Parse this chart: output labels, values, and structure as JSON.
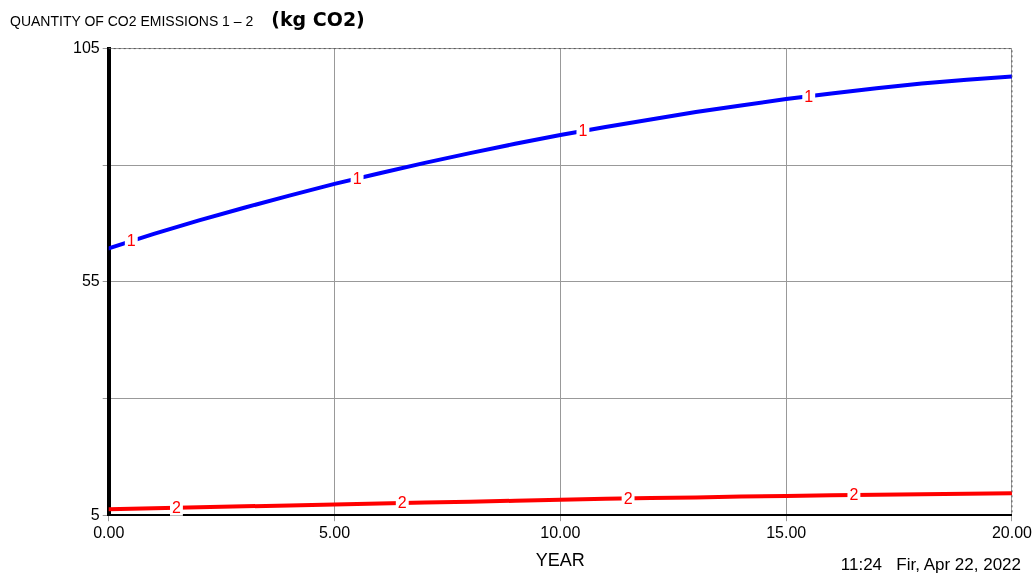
{
  "chart_data": {
    "type": "line",
    "title": "QUANTITY OF CO2 EMISSIONS 1 – 2",
    "ylabel": "(kg CO2)",
    "xlabel": "YEAR",
    "x": [
      0,
      1,
      2,
      3,
      4,
      5,
      6,
      7,
      8,
      9,
      10,
      11,
      12,
      13,
      14,
      15,
      16,
      17,
      18,
      19,
      20
    ],
    "series": [
      {
        "name": "1",
        "color": "#0000ff",
        "values": [
          62.2,
          65.3,
          68.2,
          70.9,
          73.5,
          76.0,
          78.3,
          80.5,
          82.6,
          84.6,
          86.5,
          88.2,
          89.8,
          91.4,
          92.8,
          94.2,
          95.4,
          96.5,
          97.5,
          98.3,
          99.0
        ]
      },
      {
        "name": "2",
        "color": "#ff0000",
        "values": [
          6.3,
          6.5,
          6.7,
          6.9,
          7.1,
          7.3,
          7.5,
          7.7,
          7.9,
          8.1,
          8.3,
          8.5,
          8.7,
          8.8,
          9.0,
          9.1,
          9.3,
          9.4,
          9.5,
          9.6,
          9.7
        ]
      }
    ],
    "xlim": [
      0,
      20
    ],
    "xticks": [
      {
        "value": 0,
        "label": "0.00"
      },
      {
        "value": 5,
        "label": "5.00"
      },
      {
        "value": 10,
        "label": "10.00"
      },
      {
        "value": 15,
        "label": "15.00"
      },
      {
        "value": 20,
        "label": "20.00"
      }
    ],
    "ylim": [
      5,
      105
    ],
    "yticks": [
      5,
      {
        "value": 30,
        "label": null
      },
      55,
      {
        "value": 80,
        "label": null
      },
      105
    ],
    "grid": true,
    "legend": false,
    "marker": "none",
    "line_style": "solid",
    "annotations": [
      "11:24   Fir, Apr 22, 2022"
    ]
  }
}
